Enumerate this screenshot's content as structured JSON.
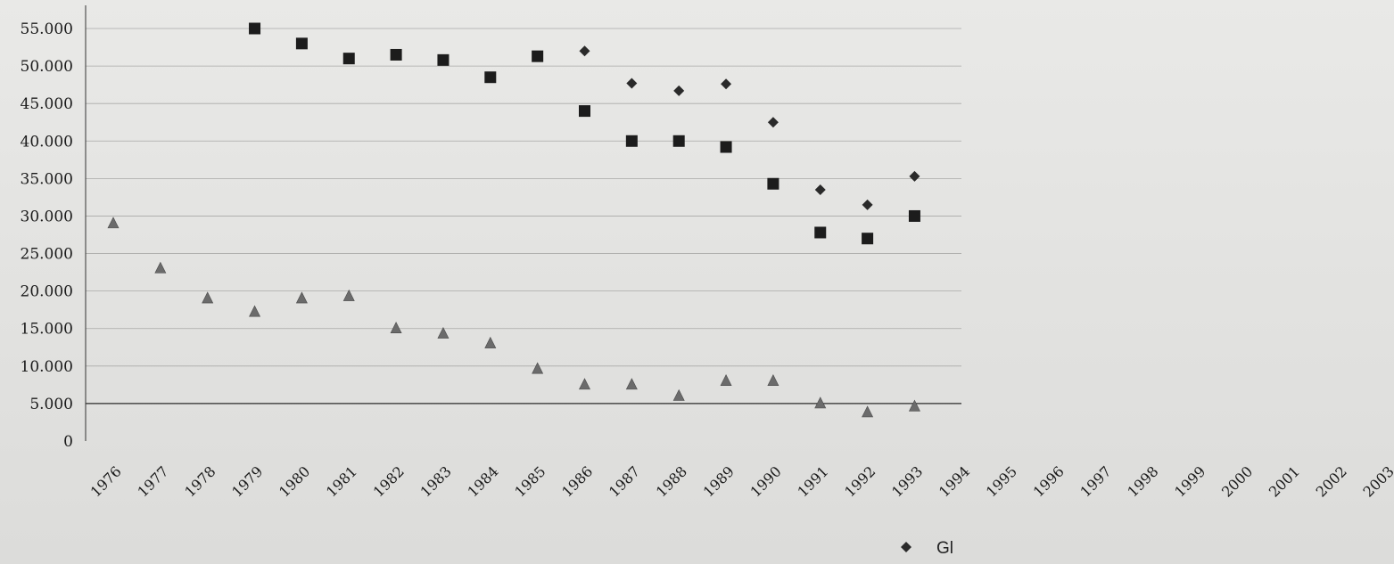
{
  "chart_data": {
    "type": "scatter",
    "title": "",
    "xlabel": "",
    "ylabel": "",
    "ylim": [
      0,
      55000
    ],
    "y_ticks": [
      0,
      5000,
      10000,
      15000,
      20000,
      25000,
      30000,
      35000,
      40000,
      45000,
      50000,
      55000
    ],
    "y_tick_labels": [
      "0",
      "5.000",
      "10.000",
      "15.000",
      "20.000",
      "25.000",
      "30.000",
      "35.000",
      "40.000",
      "45.000",
      "50.000",
      "55.000"
    ],
    "categories": [
      "1976",
      "1977",
      "1978",
      "1979",
      "1980",
      "1981",
      "1982",
      "1983",
      "1984",
      "1985",
      "1986",
      "1987",
      "1988",
      "1989",
      "1990",
      "1991",
      "1992",
      "1993",
      "1994",
      "1995",
      "1996",
      "1997",
      "1998",
      "1999",
      "2000",
      "2001",
      "2002",
      "2003"
    ],
    "grid": true,
    "legend_position": "bottom",
    "series": [
      {
        "name": "Gl",
        "marker": "diamond",
        "color": "#2a2a2a",
        "points": [
          {
            "x": "1986",
            "y": 52000
          },
          {
            "x": "1987",
            "y": 47700
          },
          {
            "x": "1988",
            "y": 46700
          },
          {
            "x": "1989",
            "y": 47600
          },
          {
            "x": "1990",
            "y": 42500
          },
          {
            "x": "1991",
            "y": 33500
          },
          {
            "x": "1992",
            "y": 31500
          },
          {
            "x": "1993",
            "y": 35300
          }
        ]
      },
      {
        "marker": "square",
        "color": "#1c1c1c",
        "points": [
          {
            "x": "1979",
            "y": 55000
          },
          {
            "x": "1980",
            "y": 53000
          },
          {
            "x": "1981",
            "y": 51000
          },
          {
            "x": "1982",
            "y": 51500
          },
          {
            "x": "1983",
            "y": 50800
          },
          {
            "x": "1984",
            "y": 48500
          },
          {
            "x": "1985",
            "y": 51300
          },
          {
            "x": "1986",
            "y": 44000
          },
          {
            "x": "1987",
            "y": 40000
          },
          {
            "x": "1988",
            "y": 40000
          },
          {
            "x": "1989",
            "y": 39200
          },
          {
            "x": "1990",
            "y": 34300
          },
          {
            "x": "1991",
            "y": 27800
          },
          {
            "x": "1992",
            "y": 27000
          },
          {
            "x": "1993",
            "y": 30000
          }
        ]
      },
      {
        "marker": "triangle",
        "color": "#6b6b6b",
        "points": [
          {
            "x": "1976",
            "y": 29000
          },
          {
            "x": "1977",
            "y": 23000
          },
          {
            "x": "1978",
            "y": 19000
          },
          {
            "x": "1979",
            "y": 17200
          },
          {
            "x": "1980",
            "y": 19000
          },
          {
            "x": "1981",
            "y": 19300
          },
          {
            "x": "1982",
            "y": 15000
          },
          {
            "x": "1983",
            "y": 14300
          },
          {
            "x": "1984",
            "y": 13000
          },
          {
            "x": "1985",
            "y": 9600
          },
          {
            "x": "1986",
            "y": 7500
          },
          {
            "x": "1987",
            "y": 7500
          },
          {
            "x": "1988",
            "y": 6000
          },
          {
            "x": "1989",
            "y": 8000
          },
          {
            "x": "1990",
            "y": 8000
          },
          {
            "x": "1991",
            "y": 5000
          },
          {
            "x": "1992",
            "y": 3800
          },
          {
            "x": "1993",
            "y": 4600
          }
        ]
      }
    ]
  }
}
